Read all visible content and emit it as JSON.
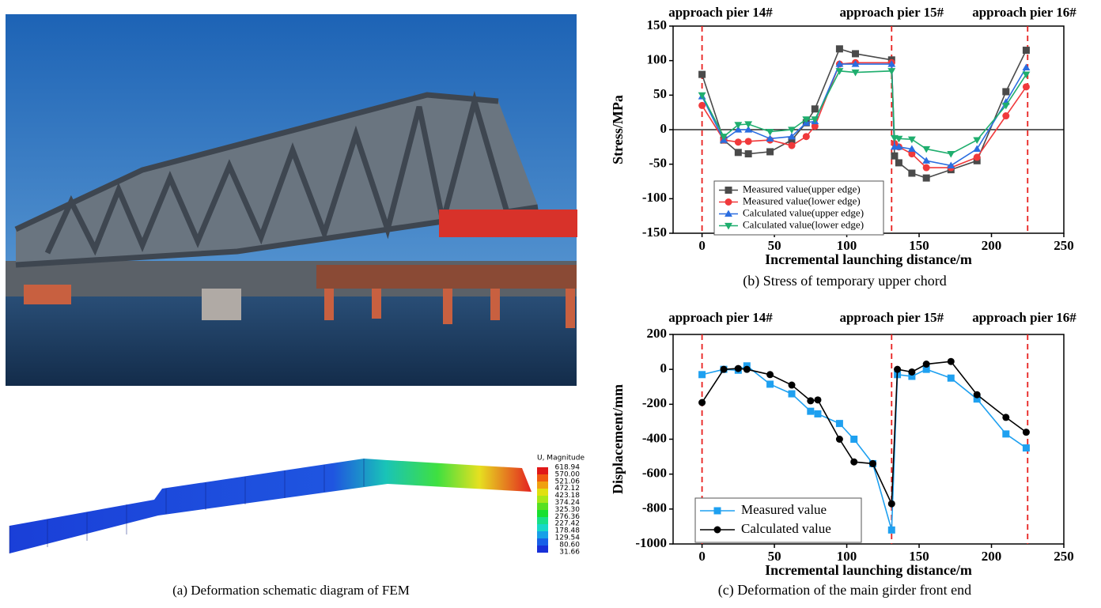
{
  "photo_caption": "(a) Deformation schematic diagram of FEM",
  "fem": {
    "legend_title": "U, Magnitude",
    "legend_values": [
      "618.94",
      "570.00",
      "521.06",
      "472.12",
      "423.18",
      "374.24",
      "325.30",
      "276.36",
      "227.42",
      "178.48",
      "129.54",
      "80.60",
      "31.66"
    ]
  },
  "chart_data": [
    {
      "type": "line",
      "caption": "(b) Stress of temporary upper chord",
      "x_label": "Incremental launching distance/m",
      "y_label": "Stress/MPa",
      "xlim": [
        -20,
        250
      ],
      "ylim": [
        -150,
        150
      ],
      "xticks": [
        0,
        50,
        100,
        150,
        200,
        250
      ],
      "yticks": [
        150,
        100,
        50,
        0,
        -50,
        -100,
        -150
      ],
      "zero_line": true,
      "legend": "lower left",
      "piers": [
        {
          "x": 0,
          "label": "approach pier 14#"
        },
        {
          "x": 131,
          "label": "approach pier 15#"
        },
        {
          "x": 225,
          "label": "approach pier 16#"
        }
      ],
      "x": [
        0,
        15,
        25,
        32,
        47,
        62,
        72,
        78,
        95,
        106,
        131,
        133,
        136,
        145,
        155,
        172,
        190,
        210,
        224
      ],
      "series": [
        {
          "name": "Measured value(upper edge)",
          "color": "#4a4a4a",
          "marker": "square",
          "values": [
            80,
            -15,
            -33,
            -35,
            -32,
            -15,
            10,
            30,
            117,
            110,
            101,
            -38,
            -48,
            -63,
            -70,
            -58,
            -45,
            55,
            115
          ]
        },
        {
          "name": "Measured value(lower edge)",
          "color": "#f0393b",
          "marker": "circle",
          "values": [
            35,
            -15,
            -18,
            -17,
            -15,
            -23,
            -10,
            5,
            95,
            97,
            97,
            -20,
            -25,
            -35,
            -55,
            -55,
            -40,
            20,
            62
          ]
        },
        {
          "name": "Calculated value(upper edge)",
          "color": "#2a6de0",
          "marker": "triangle",
          "values": [
            48,
            -15,
            0,
            0,
            -13,
            -10,
            10,
            12,
            95,
            95,
            95,
            -25,
            -25,
            -28,
            -45,
            -52,
            -28,
            40,
            90
          ]
        },
        {
          "name": "Calculated value(lower edge)",
          "color": "#1fae6e",
          "marker": "triangle-down",
          "values": [
            50,
            -10,
            7,
            8,
            -3,
            0,
            15,
            15,
            85,
            83,
            85,
            -12,
            -13,
            -14,
            -28,
            -35,
            -15,
            35,
            80
          ]
        }
      ]
    },
    {
      "type": "line",
      "caption": "(c) Deformation of the main girder front end",
      "x_label": "Incremental launching distance/m",
      "y_label": "Displacement/mm",
      "xlim": [
        -20,
        250
      ],
      "ylim": [
        -1000,
        200
      ],
      "xticks": [
        0,
        50,
        100,
        150,
        200,
        250
      ],
      "yticks": [
        200,
        0,
        -200,
        -400,
        -600,
        -800,
        -1000
      ],
      "zero_line": false,
      "legend": "lower left",
      "piers": [
        {
          "x": 0,
          "label": "approach pier 14#"
        },
        {
          "x": 131,
          "label": "approach pier 15#"
        },
        {
          "x": 225,
          "label": "approach pier 16#"
        }
      ],
      "x": [
        0,
        15,
        25,
        31,
        47,
        62,
        75,
        80,
        95,
        105,
        118,
        131,
        135,
        145,
        155,
        172,
        190,
        210,
        224
      ],
      "series": [
        {
          "name": "Measured value",
          "color": "#1ea0f0",
          "marker": "square",
          "values": [
            -30,
            0,
            -5,
            20,
            -85,
            -140,
            -240,
            -255,
            -310,
            -400,
            -540,
            -920,
            -30,
            -40,
            0,
            -50,
            -170,
            -370,
            -450
          ]
        },
        {
          "name": "Calculated value",
          "color": "#000000",
          "marker": "circle",
          "values": [
            -190,
            0,
            5,
            0,
            -30,
            -90,
            -180,
            -175,
            -400,
            -530,
            -540,
            -770,
            0,
            -15,
            30,
            45,
            -145,
            -275,
            -360
          ]
        }
      ]
    }
  ]
}
